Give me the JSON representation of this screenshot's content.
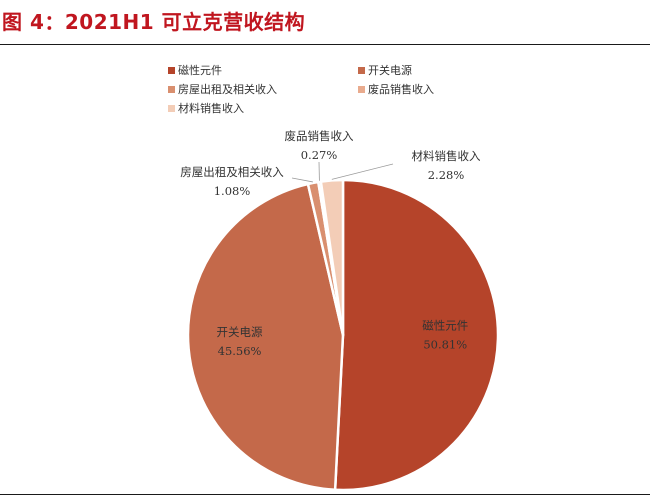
{
  "title": "图 4：2021H1 可立克营收结构",
  "chart_data": {
    "type": "pie",
    "title": "",
    "legend_position": "top",
    "slices": [
      {
        "label": "磁性元件",
        "value": 50.81,
        "value_label": "50.81%",
        "color": "#b5442a"
      },
      {
        "label": "开关电源",
        "value": 45.56,
        "value_label": "45.56%",
        "color": "#c4694a"
      },
      {
        "label": "房屋出租及相关收入",
        "value": 1.08,
        "value_label": "1.08%",
        "color": "#d98f6f"
      },
      {
        "label": "废品销售收入",
        "value": 0.27,
        "value_label": "0.27%",
        "color": "#e9ab8e"
      },
      {
        "label": "材料销售收入",
        "value": 2.28,
        "value_label": "2.28%",
        "color": "#f3cdb7"
      }
    ]
  }
}
